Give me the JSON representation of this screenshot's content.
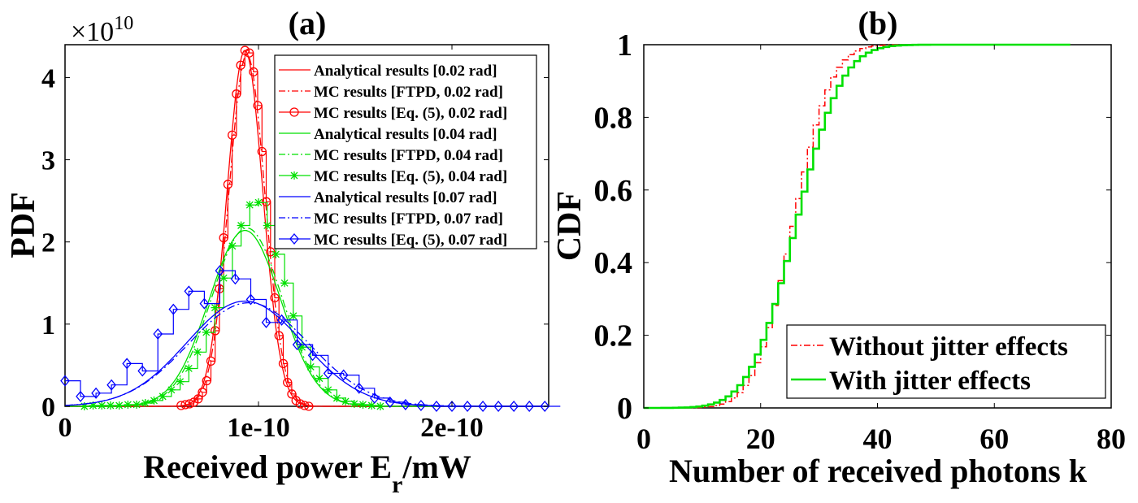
{
  "chart_data": [
    {
      "type": "line",
      "panel_label": "(a)",
      "title": "(a)",
      "xlabel_main": "Received power E",
      "xlabel_sub": "r",
      "xlabel_tail": "/mW",
      "ylabel": "PDF",
      "exponent_label": "×10",
      "exponent_power": "10",
      "xlim": [
        0,
        2.5e-10
      ],
      "ylim": [
        0,
        4.4
      ],
      "x_ticks": [
        0,
        1e-10,
        2e-10
      ],
      "x_tick_labels": [
        "0",
        "1e-10",
        "2e-10"
      ],
      "y_ticks": [
        0,
        1,
        2,
        3,
        4
      ],
      "y_tick_labels": [
        "0",
        "1",
        "2",
        "3",
        "4"
      ],
      "legend_position": "top-right",
      "legend": [
        "Analytical results [0.02 rad]",
        "MC results [FTPD, 0.02 rad]",
        "MC results [Eq. (5), 0.02 rad]",
        "Analytical results [0.04 rad]",
        "MC results [FTPD, 0.04 rad]",
        "MC results  [Eq. (5), 0.04 rad]",
        "Analytical results [0.07 rad]",
        "MC results [FTPD, 0.07 rad]",
        "MC results [Eq. (5), 0.07 rad]"
      ],
      "series": [
        {
          "name": "Analytical results [0.02 rad]",
          "color": "#ff0000",
          "style": "solid",
          "kind": "gauss",
          "mean": 9.3e-11,
          "sd": 9.2e-12,
          "peak": 4.33
        },
        {
          "name": "MC results [FTPD, 0.02 rad]",
          "color": "#ff0000",
          "style": "dashdot",
          "kind": "gauss",
          "mean": 9.4e-11,
          "sd": 9.3e-12,
          "peak": 4.28
        },
        {
          "name": "MC results [Eq. (5), 0.02 rad]",
          "color": "#ff0000",
          "style": "stairs",
          "marker": "circle",
          "x_start": 6e-11,
          "x_step": 2.2e-12,
          "values": [
            0.01,
            0.02,
            0.03,
            0.05,
            0.09,
            0.17,
            0.31,
            0.55,
            0.92,
            1.43,
            2.05,
            2.7,
            3.3,
            3.8,
            4.15,
            4.33,
            4.3,
            4.07,
            3.66,
            3.1,
            2.49,
            1.88,
            1.32,
            0.86,
            0.52,
            0.29,
            0.15,
            0.07,
            0.03,
            0.01,
            0.0
          ]
        },
        {
          "name": "Analytical results [0.04 rad]",
          "color": "#00e000",
          "style": "solid",
          "kind": "gauss",
          "mean": 9.3e-11,
          "sd": 1.85e-11,
          "peak": 2.14
        },
        {
          "name": "MC results [FTPD, 0.04 rad]",
          "color": "#00e000",
          "style": "dashdot",
          "kind": "gauss",
          "mean": 9.4e-11,
          "sd": 1.83e-11,
          "peak": 2.17
        },
        {
          "name": "MC results  [Eq. (5), 0.04 rad]",
          "color": "#00e000",
          "style": "stairs",
          "marker": "star",
          "x_start": 1e-11,
          "x_step": 4.5e-12,
          "values": [
            0.0,
            0.01,
            0.01,
            0.01,
            0.01,
            0.02,
            0.02,
            0.04,
            0.07,
            0.12,
            0.2,
            0.3,
            0.46,
            0.66,
            0.9,
            1.2,
            1.56,
            1.95,
            2.2,
            2.45,
            2.48,
            2.2,
            1.85,
            1.5,
            1.1,
            0.72,
            0.48,
            0.34,
            0.2,
            0.1,
            0.06,
            0.03,
            0.02,
            0.01,
            0.0
          ]
        },
        {
          "name": "Analytical results [0.07 rad]",
          "color": "#0000ff",
          "style": "solid",
          "kind": "gauss",
          "mean": 9.3e-11,
          "sd": 3e-11,
          "peak": 1.28
        },
        {
          "name": "MC results [FTPD, 0.07 rad]",
          "color": "#0000ff",
          "style": "dashdot",
          "kind": "gauss",
          "mean": 9.5e-11,
          "sd": 3.1e-11,
          "peak": 1.26
        },
        {
          "name": "MC results [Eq. (5), 0.07 rad]",
          "color": "#0000ff",
          "style": "stairs",
          "marker": "diamond",
          "x_start": 0.0,
          "x_step": 8e-12,
          "values": [
            0.31,
            0.12,
            0.16,
            0.26,
            0.52,
            0.43,
            0.88,
            1.18,
            1.4,
            1.25,
            1.65,
            1.55,
            1.3,
            1.02,
            1.05,
            0.75,
            0.62,
            0.4,
            0.38,
            0.22,
            0.1,
            0.05,
            0.02,
            0.01,
            0.0,
            0.0,
            0.0,
            0.0,
            0.0,
            0.0,
            0.0,
            0.0
          ]
        }
      ]
    },
    {
      "type": "line",
      "panel_label": "(b)",
      "title": "(b)",
      "xlabel": "Number of received photons k",
      "ylabel": "CDF",
      "xlim": [
        0,
        80
      ],
      "ylim": [
        0,
        1
      ],
      "x_ticks": [
        0,
        20,
        40,
        60,
        80
      ],
      "x_tick_labels": [
        "0",
        "20",
        "40",
        "60",
        "80"
      ],
      "y_ticks": [
        0,
        0.2,
        0.4,
        0.6,
        0.8,
        1
      ],
      "y_tick_labels": [
        "0",
        "0.2",
        "0.4",
        "0.6",
        "0.8",
        "1"
      ],
      "legend_position": "bottom-right",
      "legend": [
        "Without jitter effects",
        "With jitter effects"
      ],
      "series": [
        {
          "name": "Without jitter effects",
          "color": "#ff0000",
          "style": "dashdot",
          "kind": "cdf",
          "mean": 25.0,
          "sd": 5.2,
          "x_max": 73
        },
        {
          "name": "With jitter effects",
          "color": "#00e000",
          "style": "solid",
          "kind": "cdf",
          "mean": 25.5,
          "sd": 6.2,
          "x_max": 73
        }
      ]
    }
  ]
}
